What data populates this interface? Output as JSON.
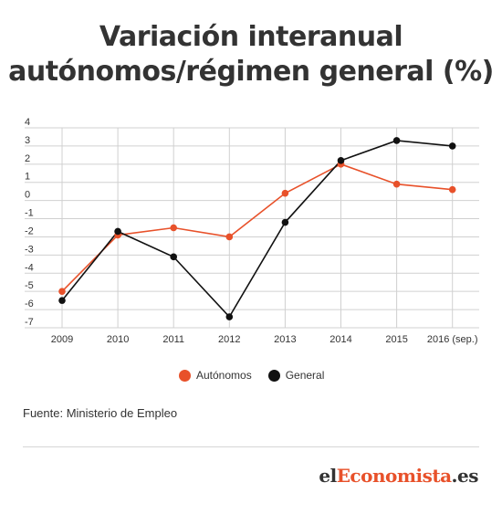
{
  "title_line1": "Variación interanual",
  "title_line2": "autónomos/régimen general (%)",
  "legend": {
    "autonomos": "Autónomos",
    "general": "General"
  },
  "source": "Fuente: Ministerio de Empleo",
  "brand": {
    "prefix": "el",
    "middle": "Economista",
    "suffix": ".es"
  },
  "colors": {
    "autonomos": "#e8512a",
    "general": "#111111",
    "grid": "#d0d0d0",
    "brand_accent": "#e8512a"
  },
  "chart_data": {
    "type": "line",
    "categories": [
      "2009",
      "2010",
      "2011",
      "2012",
      "2013",
      "2014",
      "2015",
      "2016 (sep.)"
    ],
    "ylim": [
      -7,
      4
    ],
    "yticks": [
      "4",
      "3",
      "2",
      "1",
      "0",
      "-1",
      "-2",
      "-3",
      "-4",
      "-5",
      "-6",
      "-7"
    ],
    "grid": true,
    "legend_position": "bottom",
    "series": [
      {
        "name": "Autónomos",
        "values": [
          -5.0,
          -1.9,
          -1.5,
          -2.0,
          0.4,
          2.0,
          0.9,
          0.6
        ]
      },
      {
        "name": "General",
        "values": [
          -5.5,
          -1.7,
          -3.1,
          -6.4,
          -1.2,
          2.2,
          3.3,
          3.0
        ]
      }
    ]
  }
}
